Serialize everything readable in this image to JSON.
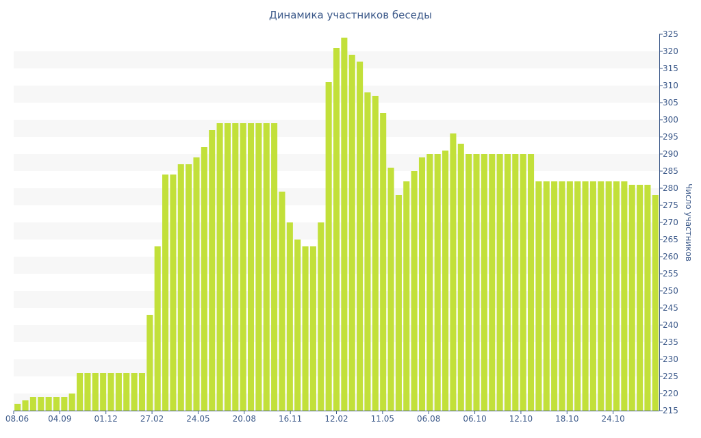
{
  "chart_data": {
    "type": "bar",
    "title": "Динамика участников беседы",
    "ylabel": "Число участников",
    "xlabel": "",
    "ylim": [
      215,
      325
    ],
    "y_ticks": [
      215,
      220,
      225,
      230,
      235,
      240,
      245,
      250,
      255,
      260,
      265,
      270,
      275,
      280,
      285,
      290,
      295,
      300,
      305,
      310,
      315,
      320,
      325
    ],
    "x_tick_labels": [
      "08.06",
      "04.09",
      "01.12",
      "27.02",
      "24.05",
      "20.08",
      "16.11",
      "12.02",
      "11.05",
      "06.08",
      "06.10",
      "12.10",
      "18.10",
      "24.10"
    ],
    "bar_color": "#c2e03a",
    "band_color": "#f7f7f7",
    "axis_color": "#3d5a8a",
    "values": [
      217,
      218,
      219,
      219,
      219,
      219,
      219,
      220,
      226,
      226,
      226,
      226,
      226,
      226,
      226,
      226,
      226,
      243,
      263,
      284,
      284,
      287,
      287,
      289,
      292,
      297,
      299,
      299,
      299,
      299,
      299,
      299,
      299,
      299,
      279,
      270,
      265,
      263,
      263,
      270,
      311,
      321,
      324,
      319,
      317,
      308,
      307,
      302,
      286,
      278,
      282,
      285,
      289,
      290,
      290,
      291,
      296,
      293,
      290,
      290,
      290,
      290,
      290,
      290,
      290,
      290,
      290,
      282,
      282,
      282,
      282,
      282,
      282,
      282,
      282,
      282,
      282,
      282,
      282,
      281,
      281,
      281,
      278
    ]
  }
}
